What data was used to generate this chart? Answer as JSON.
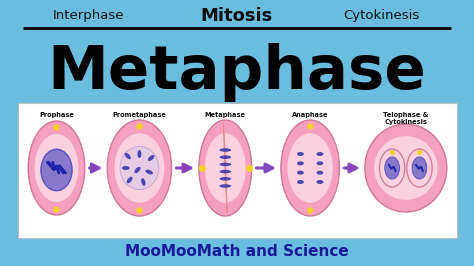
{
  "bg_color": "#6bbde0",
  "title_top_left": "Interphase",
  "title_top_center": "Mitosis",
  "title_top_right": "Cytokinesis",
  "title_main": "Metaphase",
  "title_main_color": "#000000",
  "title_top_color": "#111111",
  "line_color": "#111111",
  "bottom_text": "MooMooMath and Science",
  "bottom_text_color": "#1a1a99",
  "panel_bg": "#ffffff",
  "panel_labels": [
    "Prophase",
    "Prometaphase",
    "Metaphase",
    "Anaphase",
    "Telophase &\nCytokinesis"
  ],
  "cell_outer_color": "#f5a0c0",
  "cell_inner_color": "#fbd0df",
  "chrom_color": "#3030aa",
  "nucleus_color": "#8878cc",
  "nucleus_edge": "#6060bb",
  "arrow_color": "#8844bb",
  "yellow_dot": "#f5d020",
  "spindle_color": "#e88888"
}
